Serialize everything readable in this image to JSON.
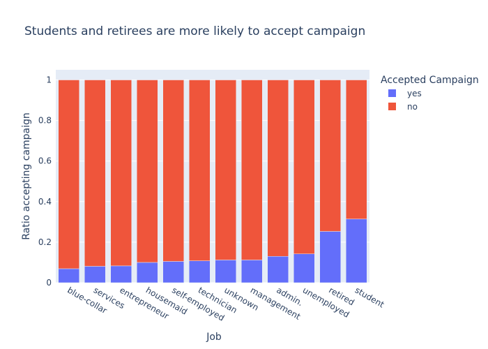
{
  "chart_data": {
    "type": "bar",
    "stacked": true,
    "title": "Students and retirees are more likely to accept campaign",
    "xlabel": "Job",
    "ylabel": "Ratio accepting campaign",
    "ylim": [
      0,
      1.05
    ],
    "yticks": [
      0,
      0.2,
      0.4,
      0.6,
      0.8,
      1
    ],
    "ytick_labels": [
      "0",
      "0.2",
      "0.4",
      "0.6",
      "0.8",
      "1"
    ],
    "grid": true,
    "legend": {
      "title": "Accepted Campaign",
      "placement": "top-right"
    },
    "categories": [
      "blue-collar",
      "services",
      "entrepreneur",
      "housemaid",
      "self-employed",
      "technician",
      "unknown",
      "management",
      "admin.",
      "unemployed",
      "retired",
      "student"
    ],
    "series": [
      {
        "name": "yes",
        "color": "#636efa",
        "values": [
          0.069,
          0.081,
          0.083,
          0.1,
          0.105,
          0.108,
          0.112,
          0.112,
          0.13,
          0.142,
          0.253,
          0.314
        ]
      },
      {
        "name": "no",
        "color": "#ef553b",
        "values": [
          0.931,
          0.919,
          0.917,
          0.9,
          0.895,
          0.892,
          0.888,
          0.888,
          0.87,
          0.858,
          0.747,
          0.686
        ]
      }
    ],
    "colors": {
      "plot_bg": "#e5ecf6",
      "grid": "#ffffff",
      "text": "#2a3f5f"
    }
  }
}
